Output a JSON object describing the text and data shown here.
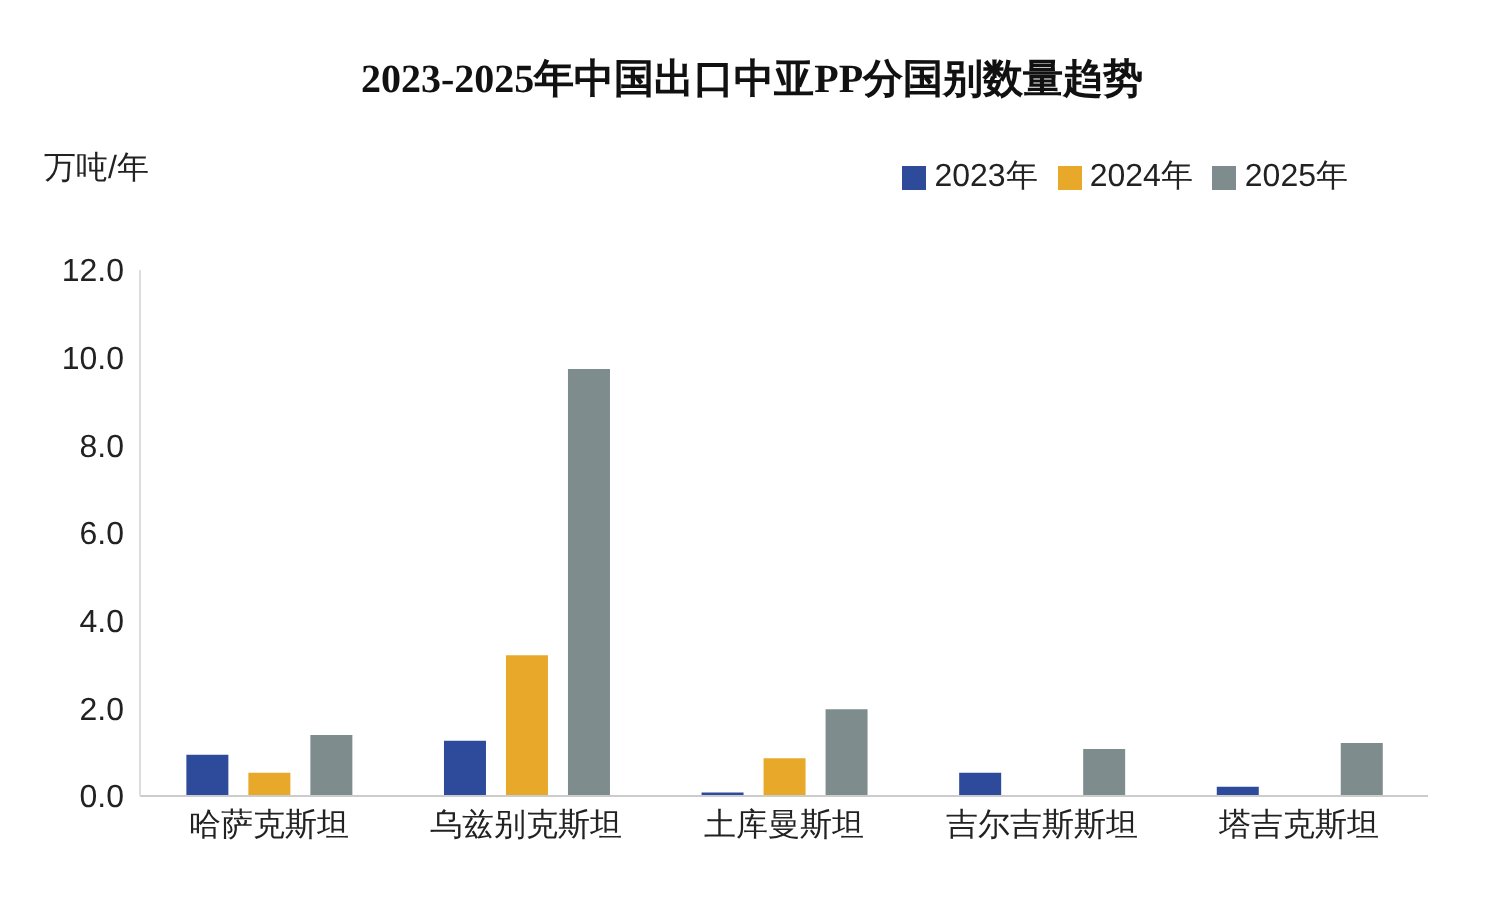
{
  "chart_data": {
    "type": "bar",
    "title": "2023-2025年中国出口中亚PP分国别数量趋势",
    "ylabel": "万吨/年",
    "categories": [
      "哈萨克斯坦",
      "乌兹别克斯坦",
      "土库曼斯坦",
      "吉尔吉斯斯坦",
      "塔吉克斯坦"
    ],
    "series": [
      {
        "name": "2023年",
        "color": "#2e4b9b",
        "values": [
          0.94,
          1.26,
          0.08,
          0.53,
          0.21
        ]
      },
      {
        "name": "2024年",
        "color": "#e8a92b",
        "values": [
          0.53,
          3.21,
          0.86,
          0,
          0
        ]
      },
      {
        "name": "2025年",
        "color": "#7f8c8d",
        "values": [
          1.39,
          9.74,
          1.98,
          1.07,
          1.21
        ]
      }
    ],
    "ylim": [
      0,
      12
    ],
    "yticks": [
      {
        "value": 0,
        "label": "0.0"
      },
      {
        "value": 2,
        "label": "2.0"
      },
      {
        "value": 4,
        "label": "4.0"
      },
      {
        "value": 6,
        "label": "6.0"
      },
      {
        "value": 8,
        "label": "8.0"
      },
      {
        "value": 10,
        "label": "10.0"
      },
      {
        "value": 12,
        "label": "12.0"
      }
    ],
    "grid": false,
    "legend": "top right"
  }
}
